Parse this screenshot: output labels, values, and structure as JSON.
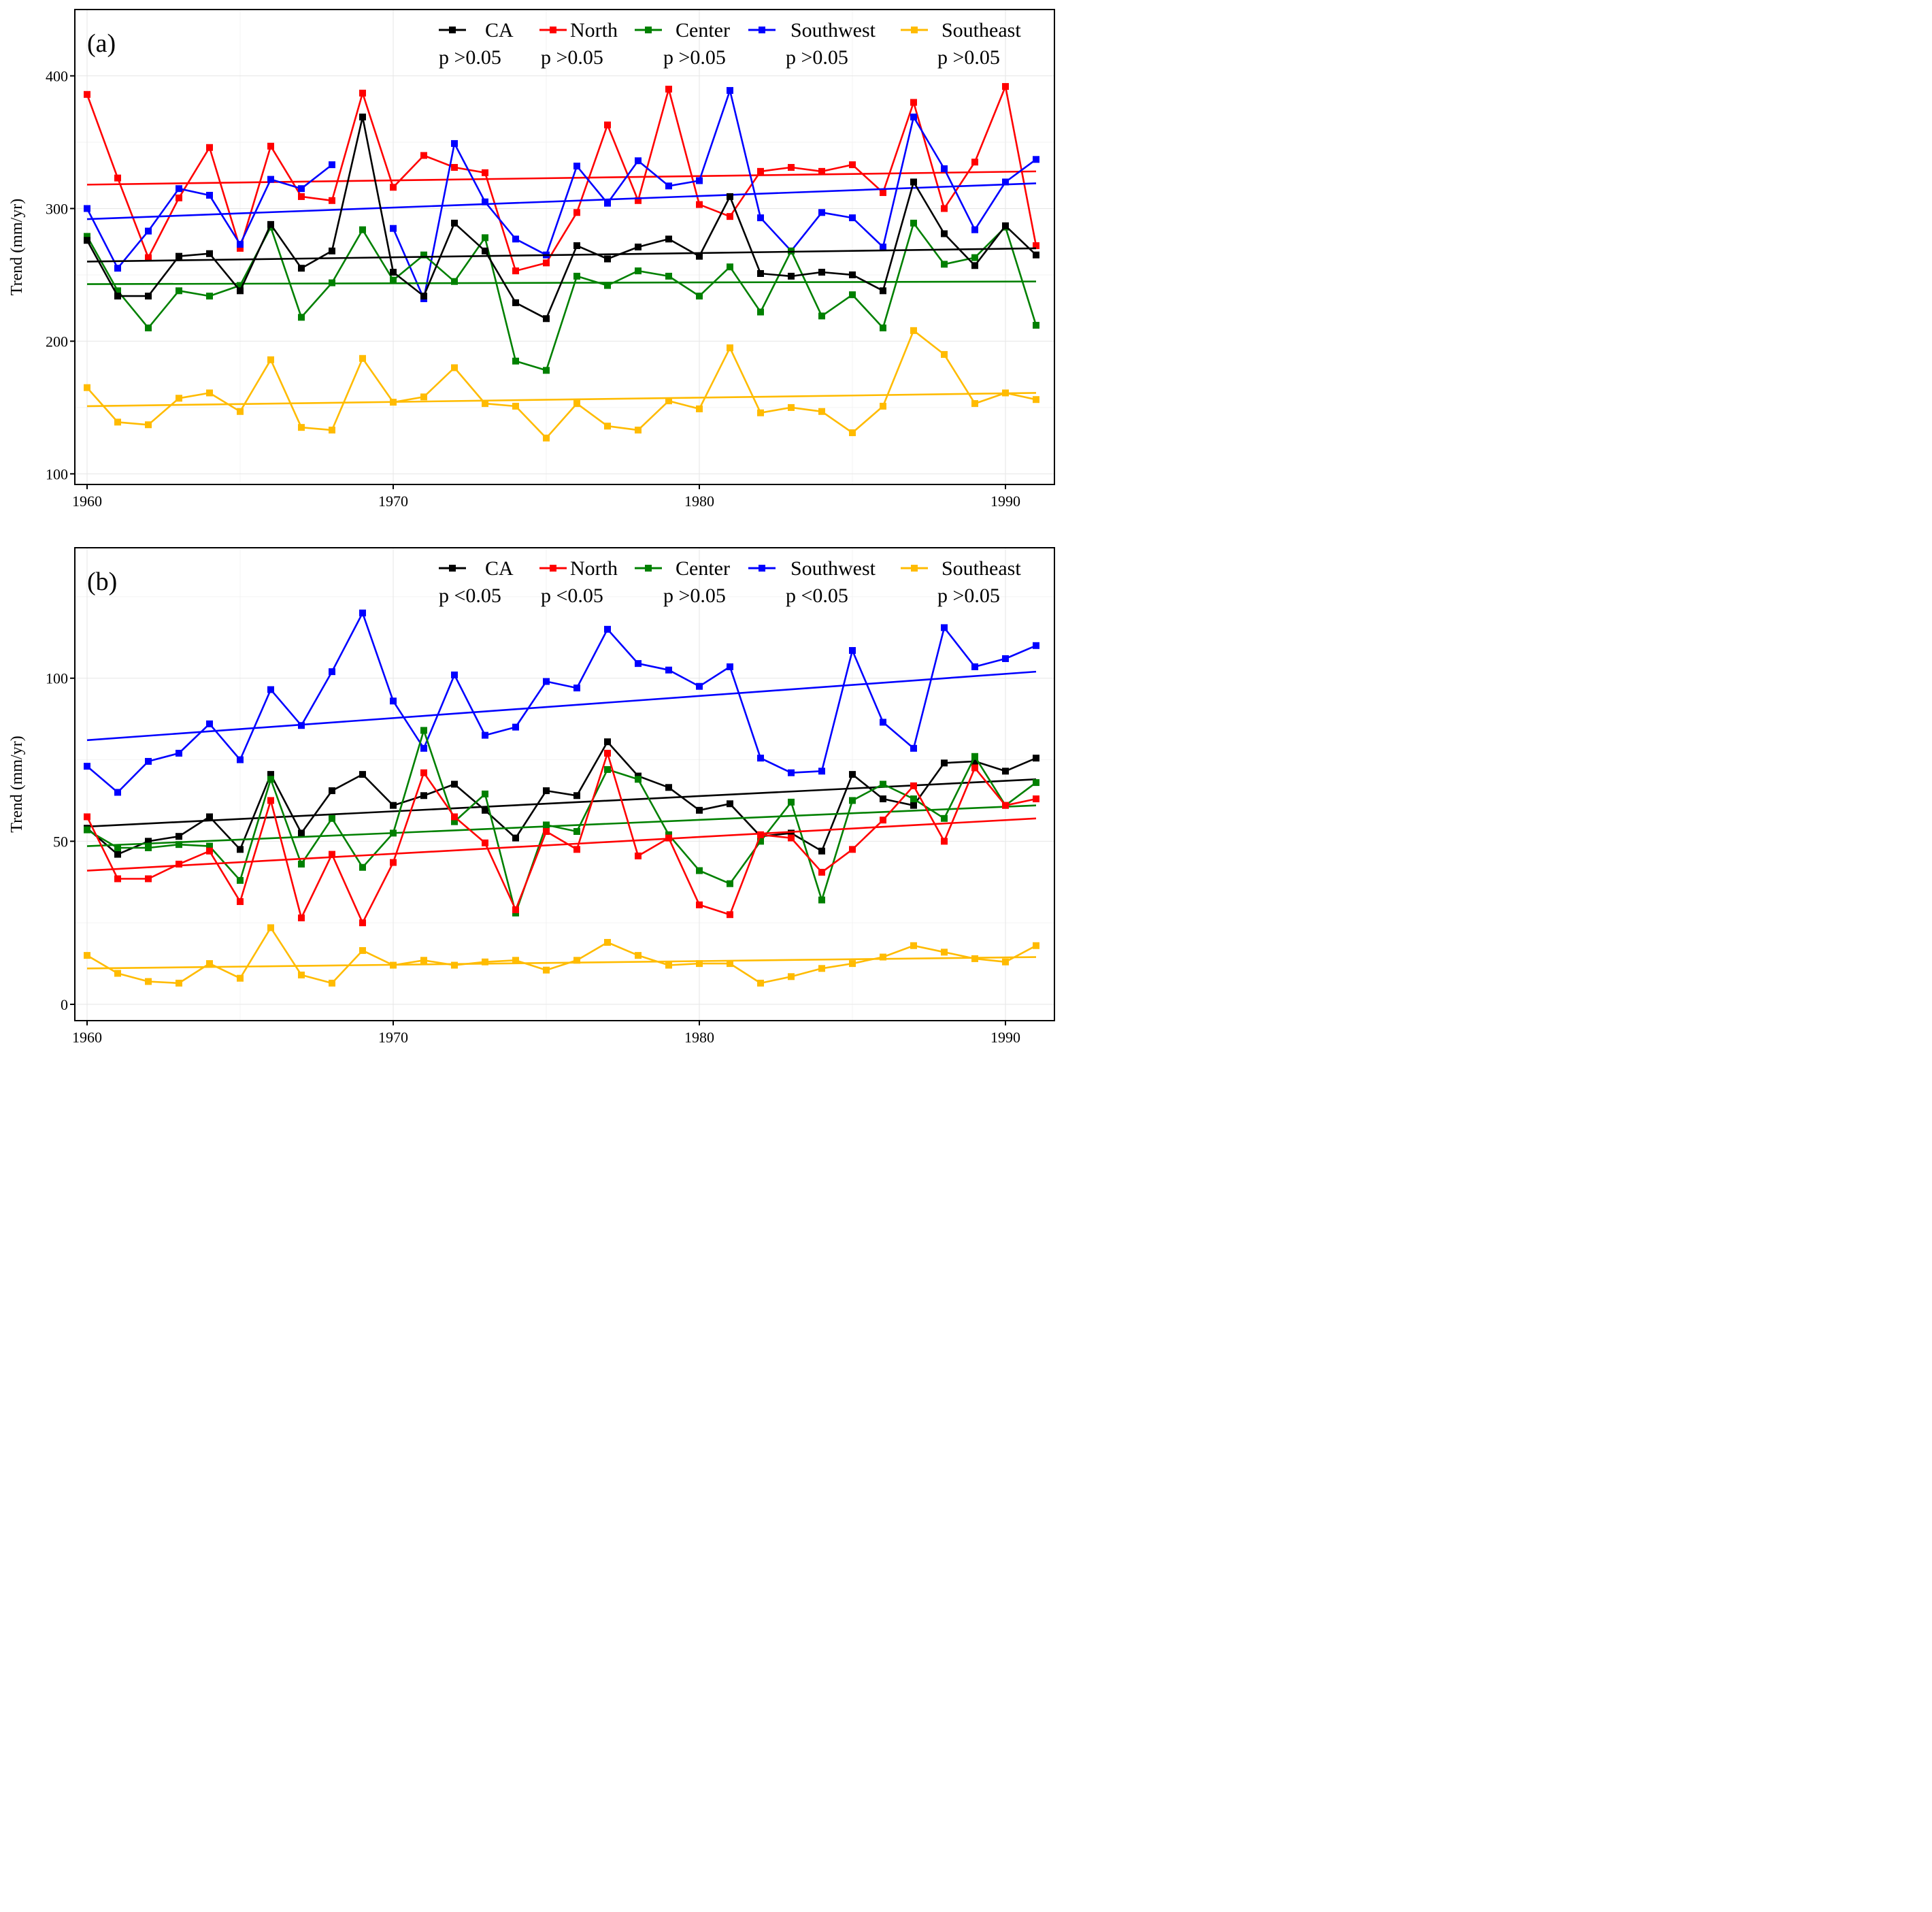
{
  "colors": {
    "CA": "#000000",
    "North": "#ff0000",
    "Center": "#008000",
    "Southwest": "#0000ff",
    "Southeast": "#ffbb00"
  },
  "chart_data": [
    {
      "type": "line",
      "panel_label": "(a)",
      "ylabel": "Trend (mm/yr)",
      "xlabel": "",
      "ylim": [
        92,
        450
      ],
      "xlim": [
        1959.6,
        1991.6
      ],
      "x_ticks": [
        1960,
        1970,
        1980,
        1990
      ],
      "y_ticks": [
        100,
        200,
        300,
        400
      ],
      "legend": [
        "CA",
        "North",
        "Center",
        "Southwest",
        "Southeast"
      ],
      "pvalues": [
        "p >0.05",
        "p >0.05",
        "p >0.05",
        "p >0.05",
        "p >0.05"
      ],
      "x": [
        1960,
        1961,
        1962,
        1963,
        1964,
        1965,
        1966,
        1967,
        1968,
        1969,
        1970,
        1971,
        1972,
        1973,
        1974,
        1975,
        1976,
        1977,
        1978,
        1979,
        1980,
        1981,
        1982,
        1983,
        1984,
        1985,
        1986,
        1987,
        1988,
        1989,
        1990,
        1991
      ],
      "series": [
        {
          "name": "North",
          "color_key": "North",
          "values": [
            386,
            323,
            263,
            308,
            346,
            270,
            347,
            309,
            306,
            387,
            316,
            340,
            331,
            327,
            253,
            259,
            297,
            363,
            306,
            390,
            303,
            294,
            328,
            331,
            328,
            333,
            312,
            380,
            300,
            335,
            392,
            272
          ],
          "trend": [
            318,
            328
          ]
        },
        {
          "name": "Southwest",
          "color_key": "Southwest",
          "values": [
            300,
            255,
            283,
            315,
            310,
            273,
            322,
            315,
            333,
            null,
            285,
            232,
            349,
            305,
            277,
            265,
            332,
            304,
            336,
            317,
            321,
            389,
            293,
            268,
            297,
            293,
            271,
            369,
            330,
            284,
            320,
            337
          ],
          "trend": [
            292,
            319
          ]
        },
        {
          "name": "Center",
          "color_key": "Center",
          "values": [
            279,
            238,
            210,
            238,
            234,
            242,
            286,
            218,
            244,
            284,
            246,
            265,
            245,
            278,
            185,
            178,
            249,
            242,
            253,
            249,
            234,
            256,
            222,
            268,
            219,
            235,
            210,
            289,
            258,
            263,
            286,
            212
          ],
          "trend": [
            243,
            245
          ]
        },
        {
          "name": "CA",
          "color_key": "CA",
          "values": [
            276,
            234,
            234,
            264,
            266,
            238,
            288,
            255,
            268,
            369,
            252,
            234,
            289,
            268,
            229,
            217,
            272,
            262,
            271,
            277,
            264,
            309,
            251,
            249,
            252,
            250,
            238,
            320,
            281,
            257,
            287,
            265
          ],
          "trend": [
            260,
            270
          ]
        },
        {
          "name": "Southeast",
          "color_key": "Southeast",
          "values": [
            165,
            139,
            137,
            157,
            161,
            147,
            186,
            135,
            133,
            187,
            154,
            158,
            180,
            153,
            151,
            127,
            153,
            136,
            133,
            155,
            149,
            195,
            146,
            150,
            147,
            131,
            151,
            208,
            190,
            153,
            161,
            156
          ],
          "trend": [
            151,
            161
          ]
        }
      ]
    },
    {
      "type": "line",
      "panel_label": "(b)",
      "ylabel": "Trend (mm/yr)",
      "xlabel": "",
      "ylim": [
        -5,
        140
      ],
      "xlim": [
        1959.6,
        1991.6
      ],
      "x_ticks": [
        1960,
        1970,
        1980,
        1990
      ],
      "y_ticks": [
        0,
        50,
        100
      ],
      "legend": [
        "CA",
        "North",
        "Center",
        "Southwest",
        "Southeast"
      ],
      "pvalues": [
        "p <0.05",
        "p <0.05",
        "p >0.05",
        "p <0.05",
        "p >0.05"
      ],
      "x": [
        1960,
        1961,
        1962,
        1963,
        1964,
        1965,
        1966,
        1967,
        1968,
        1969,
        1970,
        1971,
        1972,
        1973,
        1974,
        1975,
        1976,
        1977,
        1978,
        1979,
        1980,
        1981,
        1982,
        1983,
        1984,
        1985,
        1986,
        1987,
        1988,
        1989,
        1990,
        1991
      ],
      "series": [
        {
          "name": "Southwest",
          "color_key": "Southwest",
          "values": [
            73,
            65,
            74.5,
            77,
            86,
            75,
            96.5,
            85.5,
            102,
            120,
            93,
            78.5,
            101,
            82.5,
            85,
            99,
            97,
            115,
            104.5,
            102.5,
            97.5,
            103.5,
            75.5,
            71,
            71.5,
            108.5,
            86.5,
            78.5,
            115.5,
            103.5,
            106,
            110
          ],
          "trend": [
            81,
            102
          ]
        },
        {
          "name": "CA",
          "color_key": "CA",
          "values": [
            54,
            46,
            50,
            51.5,
            57.5,
            47.5,
            70.5,
            52.5,
            65.5,
            70.5,
            61,
            64,
            67.5,
            59.5,
            51,
            65.5,
            64,
            80.5,
            70,
            66.5,
            59.5,
            61.5,
            51.5,
            52.5,
            47,
            70.5,
            63,
            61,
            74,
            74.5,
            71.5,
            75.5
          ],
          "trend": [
            54.5,
            69
          ]
        },
        {
          "name": "Center",
          "color_key": "Center",
          "values": [
            53.5,
            48,
            48,
            49,
            48.5,
            38,
            69,
            43,
            57,
            42,
            52.5,
            84,
            56,
            64.5,
            28,
            55,
            53,
            72,
            69,
            52,
            41,
            37,
            50,
            62,
            32,
            62.5,
            67.5,
            63,
            57,
            76,
            61,
            68
          ],
          "trend": [
            48.5,
            61
          ]
        },
        {
          "name": "North",
          "color_key": "North",
          "values": [
            57.5,
            38.5,
            38.5,
            43,
            47,
            31.5,
            62.5,
            26.5,
            46,
            25,
            43.5,
            71,
            57.5,
            49.5,
            29,
            53,
            47.5,
            77,
            45.5,
            51,
            30.5,
            27.5,
            52,
            51,
            40.5,
            47.5,
            56.5,
            67,
            50,
            72.5,
            61,
            63
          ],
          "trend": [
            41,
            57
          ]
        },
        {
          "name": "Southeast",
          "color_key": "Southeast",
          "values": [
            15,
            9.5,
            7,
            6.5,
            12.5,
            8,
            23.5,
            9,
            6.5,
            16.5,
            12,
            13.5,
            12,
            13,
            13.5,
            10.5,
            13.5,
            19,
            15,
            12,
            12.5,
            12.5,
            6.5,
            8.5,
            11,
            12.5,
            14.5,
            18,
            16,
            14,
            13,
            18
          ],
          "trend": [
            11,
            14.5
          ]
        }
      ]
    }
  ]
}
